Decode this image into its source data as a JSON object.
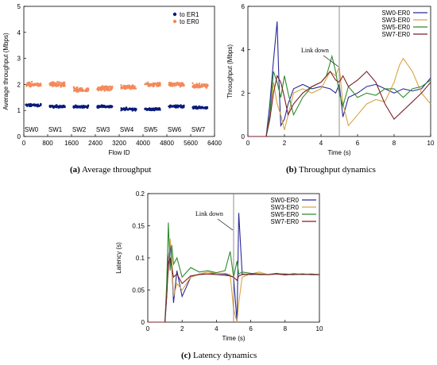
{
  "chart_data": [
    {
      "id": "a",
      "type": "scatter",
      "caption_tag": "(a)",
      "caption_text": "Average throughput",
      "xlabel": "Flow ID",
      "ylabel": "Average throughput (Mbps)",
      "xlim": [
        0,
        6400
      ],
      "ylim": [
        0,
        5
      ],
      "xticks": [
        "0",
        "800",
        "1600",
        "2400",
        "3200",
        "4000",
        "4800",
        "5600",
        "6400"
      ],
      "yticks": [
        "0",
        "1",
        "2",
        "3",
        "4",
        "5"
      ],
      "group_labels": [
        "SW0",
        "SW1",
        "SW2",
        "SW3",
        "SW4",
        "SW5",
        "SW6",
        "SW7"
      ],
      "legend_position": "top-right",
      "series": [
        {
          "name": "to ER1",
          "color": "#0a1a7a",
          "group_means": [
            1.2,
            1.15,
            1.15,
            1.15,
            1.05,
            1.05,
            1.15,
            1.1
          ]
        },
        {
          "name": "to ER0",
          "color": "#f4895a",
          "group_means": [
            2.0,
            2.0,
            1.8,
            1.85,
            1.9,
            2.0,
            2.0,
            1.95
          ]
        }
      ]
    },
    {
      "id": "b",
      "type": "line",
      "caption_tag": "(b)",
      "caption_text": "Throughput dynamics",
      "xlabel": "Time (s)",
      "ylabel": "Throughput (Mbps)",
      "xlim": [
        0,
        10
      ],
      "ylim": [
        0,
        6
      ],
      "xticks": [
        "0",
        "2",
        "4",
        "6",
        "8",
        "10"
      ],
      "yticks": [
        "0",
        "2",
        "4",
        "6"
      ],
      "annotation": {
        "text": "Link down",
        "x": 5
      },
      "legend_position": "top-right",
      "series": [
        {
          "name": "SW0-ER0",
          "color": "#2a2a9a",
          "x": [
            0,
            1,
            1.2,
            1.4,
            1.6,
            1.7,
            1.8,
            2.0,
            2.2,
            2.5,
            3,
            3.5,
            4,
            4.5,
            4.8,
            5,
            5.2,
            5.5,
            6,
            6.5,
            7,
            7.5,
            8,
            8.5,
            9,
            9.5,
            10
          ],
          "y": [
            0,
            0,
            1.5,
            3.5,
            5.3,
            2.5,
            0.5,
            0.8,
            1.5,
            2.2,
            2.4,
            2.2,
            2.3,
            2.2,
            2.0,
            2.4,
            0.9,
            1.8,
            2.0,
            2.3,
            2.4,
            2.2,
            2.0,
            2.2,
            2.1,
            2.2,
            2.7
          ]
        },
        {
          "name": "SW3-ER0",
          "color": "#d9a441",
          "x": [
            0,
            1,
            1.2,
            1.4,
            1.6,
            1.8,
            2.0,
            2.2,
            2.5,
            3,
            3.5,
            4,
            4.5,
            4.8,
            5,
            5.2,
            5.5,
            6,
            6.5,
            7,
            7.5,
            8,
            8.3,
            8.5,
            9,
            9.5,
            10
          ],
          "y": [
            0,
            0,
            1.0,
            2.5,
            1.5,
            1.0,
            0.3,
            1.0,
            2.0,
            2.2,
            2.0,
            2.2,
            3.0,
            2.8,
            3.2,
            1.5,
            0.5,
            1.0,
            1.5,
            1.7,
            1.6,
            2.5,
            3.3,
            3.6,
            3.0,
            2.0,
            1.5
          ]
        },
        {
          "name": "SW5-ER0",
          "color": "#2e8b2e",
          "x": [
            0,
            1,
            1.2,
            1.4,
            1.6,
            1.8,
            2.0,
            2.2,
            2.5,
            3,
            3.5,
            4,
            4.3,
            4.6,
            4.8,
            5,
            5.2,
            5.5,
            6,
            6.5,
            7,
            7.5,
            8,
            8.5,
            9,
            9.5,
            10
          ],
          "y": [
            0,
            0,
            1.0,
            3.0,
            2.5,
            1.8,
            2.8,
            2.0,
            1.0,
            1.8,
            2.3,
            2.5,
            2.8,
            3.7,
            3.0,
            2.0,
            1.4,
            2.3,
            1.8,
            2.0,
            1.9,
            2.2,
            2.2,
            1.8,
            2.2,
            2.3,
            2.6
          ]
        },
        {
          "name": "SW7-ER0",
          "color": "#7a1f2a",
          "x": [
            0,
            1,
            1.2,
            1.4,
            1.6,
            1.8,
            2.0,
            2.2,
            2.5,
            3,
            3.5,
            4,
            4.5,
            4.8,
            5,
            5.2,
            5.5,
            6,
            6.5,
            7,
            7.5,
            8,
            8.5,
            9,
            9.5,
            10
          ],
          "y": [
            0,
            0,
            0.8,
            2.0,
            2.8,
            2.5,
            1.8,
            1.0,
            1.5,
            2.0,
            2.3,
            2.5,
            3.0,
            2.6,
            2.5,
            2.8,
            2.3,
            2.6,
            3.0,
            2.5,
            1.5,
            0.8,
            1.2,
            1.6,
            2.0,
            2.5
          ]
        }
      ]
    },
    {
      "id": "c",
      "type": "line",
      "caption_tag": "(c)",
      "caption_text": "Latency dynamics",
      "xlabel": "Time (s)",
      "ylabel": "Latency (s)",
      "xlim": [
        0,
        10
      ],
      "ylim": [
        0,
        0.2
      ],
      "xticks": [
        "0",
        "2",
        "4",
        "6",
        "8",
        "10"
      ],
      "yticks": [
        "0",
        "0.05",
        "0.1",
        "0.15",
        "0.2"
      ],
      "annotation": {
        "text": "Link down",
        "x": 5
      },
      "legend_position": "top-right",
      "series": [
        {
          "name": "SW0-ER0",
          "color": "#2a2a9a",
          "x": [
            0,
            1,
            1.1,
            1.2,
            1.3,
            1.4,
            1.5,
            1.7,
            2.0,
            2.5,
            3,
            3.5,
            4,
            4.5,
            4.8,
            5.0,
            5.2,
            5.3,
            5.5,
            6,
            6.5,
            7,
            7.5,
            8,
            8.5,
            9,
            9.5,
            10
          ],
          "y": [
            0,
            0,
            0.04,
            0.1,
            0.12,
            0.09,
            0.03,
            0.08,
            0.04,
            0.07,
            0.075,
            0.075,
            0.076,
            0.075,
            0.072,
            0.07,
            0.0,
            0.17,
            0.075,
            0.074,
            0.075,
            0.074,
            0.075,
            0.075,
            0.074,
            0.075,
            0.074,
            0.074
          ]
        },
        {
          "name": "SW3-ER0",
          "color": "#d9a441",
          "x": [
            0,
            1,
            1.1,
            1.2,
            1.3,
            1.4,
            1.5,
            1.7,
            2.0,
            2.5,
            3,
            3.5,
            4,
            4.5,
            4.8,
            5.0,
            5.2,
            5.3,
            5.5,
            6,
            6.5,
            7,
            7.5,
            8,
            8.5,
            9,
            9.5,
            10
          ],
          "y": [
            0,
            0,
            0.05,
            0.08,
            0.13,
            0.1,
            0.04,
            0.06,
            0.05,
            0.07,
            0.075,
            0.078,
            0.076,
            0.076,
            0.074,
            0.02,
            0.0,
            0.03,
            0.07,
            0.075,
            0.078,
            0.074,
            0.075,
            0.073,
            0.076,
            0.074,
            0.075,
            0.074
          ]
        },
        {
          "name": "SW5-ER0",
          "color": "#2e8b2e",
          "x": [
            0,
            1,
            1.1,
            1.2,
            1.3,
            1.4,
            1.5,
            1.7,
            2.0,
            2.5,
            3,
            3.5,
            4,
            4.5,
            4.8,
            5.0,
            5.2,
            5.3,
            5.5,
            6,
            6.5,
            7,
            7.5,
            8,
            8.5,
            9,
            9.5,
            10
          ],
          "y": [
            0,
            0,
            0.06,
            0.155,
            0.08,
            0.12,
            0.09,
            0.1,
            0.07,
            0.085,
            0.078,
            0.08,
            0.077,
            0.08,
            0.11,
            0.07,
            0.095,
            0.075,
            0.078,
            0.076,
            0.075,
            0.074,
            0.076,
            0.074,
            0.075,
            0.074,
            0.075,
            0.074
          ]
        },
        {
          "name": "SW7-ER0",
          "color": "#7a1f2a",
          "x": [
            0,
            1,
            1.1,
            1.2,
            1.3,
            1.4,
            1.5,
            1.7,
            2.0,
            2.5,
            3,
            3.5,
            4,
            4.5,
            4.8,
            5.0,
            5.2,
            5.3,
            5.5,
            6,
            6.5,
            7,
            7.5,
            8,
            8.5,
            9,
            9.5,
            10
          ],
          "y": [
            0,
            0,
            0.04,
            0.09,
            0.1,
            0.085,
            0.07,
            0.075,
            0.06,
            0.072,
            0.074,
            0.075,
            0.074,
            0.073,
            0.072,
            0.07,
            0.065,
            0.072,
            0.074,
            0.075,
            0.074,
            0.074,
            0.075,
            0.074,
            0.074,
            0.075,
            0.074,
            0.074
          ]
        }
      ]
    }
  ]
}
